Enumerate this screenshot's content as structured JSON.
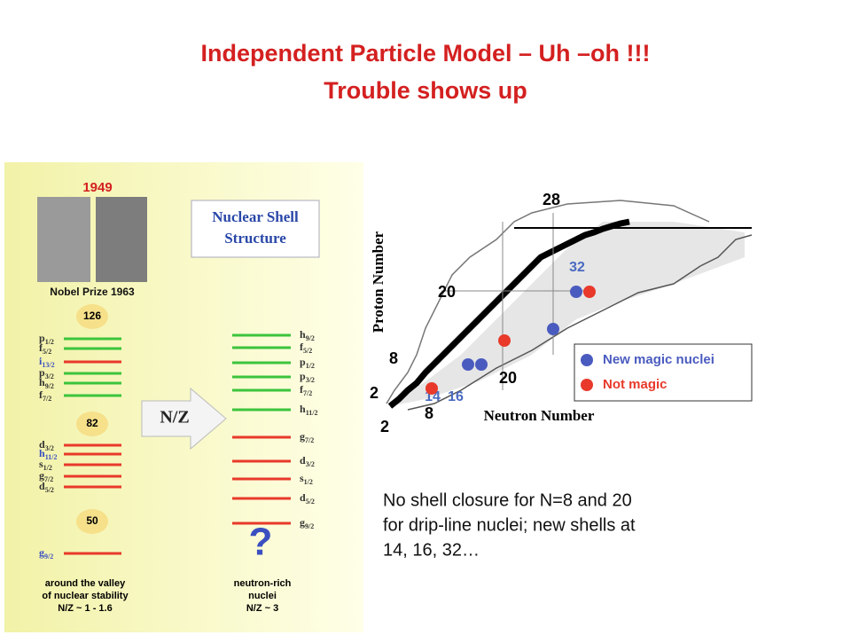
{
  "title": {
    "line1": "Independent Particle Model –  Uh –oh !!!",
    "line2": "Trouble shows up"
  },
  "left_figure": {
    "year": "1949",
    "banner": [
      "Nuclear Shell",
      "Structure"
    ],
    "prize": "Nobel Prize 1963",
    "arrow_label": "N/Z",
    "unknown": "?",
    "magic_numbers": [
      "126",
      "82",
      "50"
    ],
    "valley_levels": [
      {
        "orbital": "p",
        "j": "1/2",
        "color": "#3cc43c"
      },
      {
        "orbital": "f",
        "j": "5/2",
        "color": "#3cc43c"
      },
      {
        "orbital": "i",
        "j": "13/2",
        "color": "#e8392a",
        "label_color": "#3a4fc0"
      },
      {
        "orbital": "p",
        "j": "3/2",
        "color": "#3cc43c"
      },
      {
        "orbital": "h",
        "j": "9/2",
        "color": "#3cc43c"
      },
      {
        "orbital": "f",
        "j": "7/2",
        "color": "#3cc43c"
      },
      {
        "orbital": "d",
        "j": "3/2",
        "color": "#e8392a"
      },
      {
        "orbital": "h",
        "j": "11/2",
        "color": "#e8392a",
        "label_color": "#3a4fc0"
      },
      {
        "orbital": "s",
        "j": "1/2",
        "color": "#e8392a"
      },
      {
        "orbital": "g",
        "j": "7/2",
        "color": "#e8392a"
      },
      {
        "orbital": "d",
        "j": "5/2",
        "color": "#e8392a"
      },
      {
        "orbital": "g",
        "j": "9/2",
        "color": "#e8392a",
        "label_color": "#3a4fc0"
      }
    ],
    "neutron_rich_levels": [
      {
        "orbital": "h",
        "j": "9/2",
        "color": "#3cc43c"
      },
      {
        "orbital": "f",
        "j": "5/2",
        "color": "#3cc43c"
      },
      {
        "orbital": "p",
        "j": "1/2",
        "color": "#3cc43c"
      },
      {
        "orbital": "p",
        "j": "3/2",
        "color": "#3cc43c"
      },
      {
        "orbital": "f",
        "j": "7/2",
        "color": "#3cc43c"
      },
      {
        "orbital": "h",
        "j": "11/2",
        "color": "#3cc43c"
      },
      {
        "orbital": "g",
        "j": "7/2",
        "color": "#e8392a"
      },
      {
        "orbital": "d",
        "j": "3/2",
        "color": "#e8392a"
      },
      {
        "orbital": "s",
        "j": "1/2",
        "color": "#e8392a"
      },
      {
        "orbital": "d",
        "j": "5/2",
        "color": "#e8392a"
      },
      {
        "orbital": "g",
        "j": "9/2",
        "color": "#e8392a"
      }
    ],
    "valley_caption": [
      "around the valley",
      "of nuclear stability",
      "N/Z ~ 1 - 1.6"
    ],
    "neutron_rich_caption": [
      "neutron-rich",
      "nuclei",
      "N/Z ~ 3"
    ]
  },
  "right_figure": {
    "y_label": "Proton Number",
    "x_label": "Neutron Number",
    "proton_magic": [
      "28",
      "20",
      "8",
      "2"
    ],
    "neutron_magic": [
      "20",
      "8",
      "2"
    ],
    "new_magic": [
      "32",
      "14",
      "16"
    ],
    "legend": [
      {
        "label": "New magic nuclei",
        "color": "#4a5bbf"
      },
      {
        "label": "Not magic",
        "color": "#e8392a"
      }
    ]
  },
  "caption": [
    "No shell closure for N=8 and 20",
    "for drip-line nuclei; new shells at",
    "14, 16, 32…"
  ]
}
